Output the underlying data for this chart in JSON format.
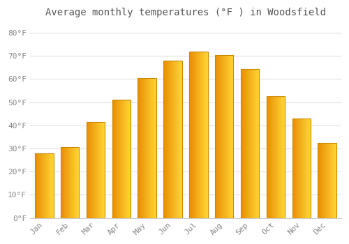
{
  "title": "Average monthly temperatures (°F ) in Woodsfield",
  "months": [
    "Jan",
    "Feb",
    "Mar",
    "Apr",
    "May",
    "Jun",
    "Jul",
    "Aug",
    "Sep",
    "Oct",
    "Nov",
    "Dec"
  ],
  "values": [
    28.0,
    30.5,
    41.5,
    51.0,
    60.5,
    68.0,
    72.0,
    70.5,
    64.5,
    52.5,
    43.0,
    32.5
  ],
  "bar_color_left": "#E8960A",
  "bar_color_right": "#FFD44A",
  "bar_color_mid": "#FFA500",
  "bar_edge_color": "#CC8800",
  "ylim": [
    0,
    85
  ],
  "yticks": [
    0,
    10,
    20,
    30,
    40,
    50,
    60,
    70,
    80
  ],
  "ytick_labels": [
    "0°F",
    "10°F",
    "20°F",
    "30°F",
    "40°F",
    "50°F",
    "60°F",
    "70°F",
    "80°F"
  ],
  "background_color": "#ffffff",
  "plot_bg_color": "#ffffff",
  "grid_color": "#e0e0e0",
  "title_fontsize": 10,
  "tick_fontsize": 8,
  "tick_color": "#888888",
  "title_color": "#555555",
  "gradient_steps": 100
}
